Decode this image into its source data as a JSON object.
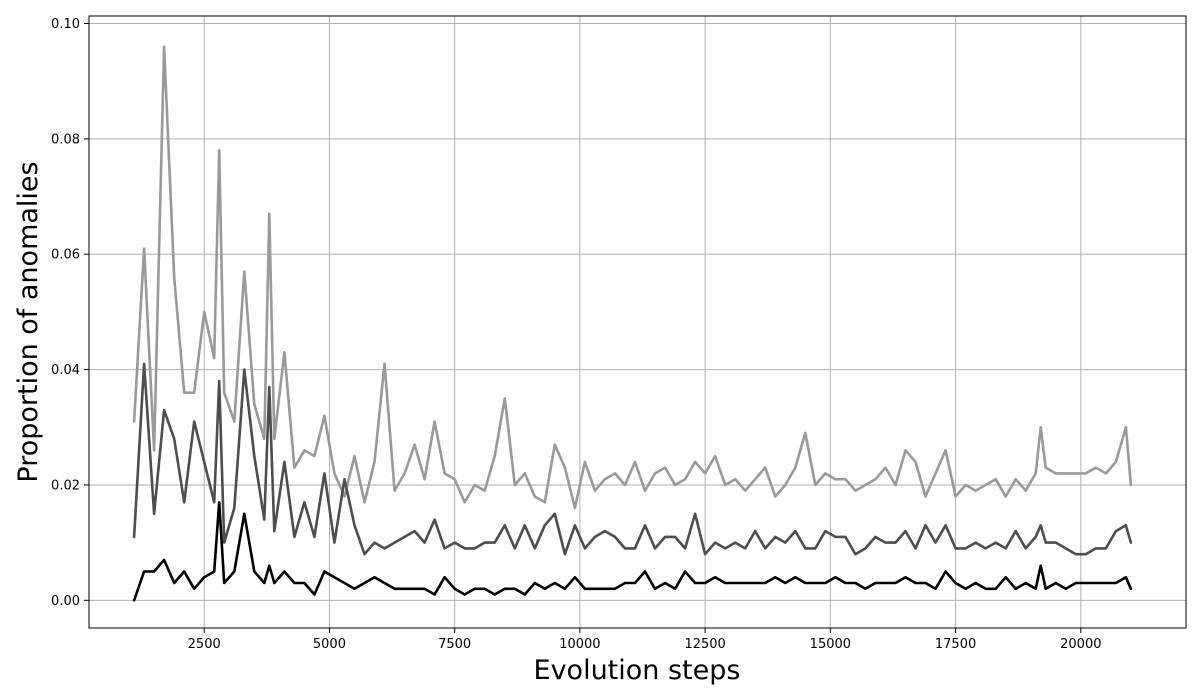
{
  "chart_data": {
    "type": "line",
    "title": "",
    "xlabel": "Evolution steps",
    "ylabel": "Proportion of anomalies",
    "xlim": [
      200,
      22100
    ],
    "ylim": [
      -0.0048,
      0.1013
    ],
    "x_ticks": [
      2500,
      5000,
      7500,
      10000,
      12500,
      15000,
      17500,
      20000
    ],
    "x_tick_labels": [
      "2500",
      "5000",
      "7500",
      "10000",
      "12500",
      "15000",
      "17500",
      "20000"
    ],
    "y_ticks": [
      0.0,
      0.02,
      0.04,
      0.06,
      0.08,
      0.1
    ],
    "y_tick_labels": [
      "0.00",
      "0.02",
      "0.04",
      "0.06",
      "0.08",
      "0.10"
    ],
    "grid": true,
    "legend": "none",
    "x": [
      1100,
      1300,
      1500,
      1700,
      1900,
      2100,
      2300,
      2500,
      2700,
      2800,
      2900,
      3100,
      3300,
      3500,
      3700,
      3800,
      3900,
      4100,
      4300,
      4500,
      4700,
      4900,
      5100,
      5300,
      5500,
      5700,
      5900,
      6100,
      6300,
      6500,
      6700,
      6900,
      7100,
      7300,
      7500,
      7700,
      7900,
      8100,
      8300,
      8500,
      8700,
      8900,
      9100,
      9300,
      9500,
      9700,
      9900,
      10100,
      10300,
      10500,
      10700,
      10900,
      11100,
      11300,
      11500,
      11700,
      11900,
      12100,
      12300,
      12500,
      12700,
      12900,
      13100,
      13300,
      13500,
      13700,
      13900,
      14100,
      14300,
      14500,
      14700,
      14900,
      15100,
      15300,
      15500,
      15700,
      15900,
      16100,
      16300,
      16500,
      16700,
      16900,
      17100,
      17300,
      17500,
      17700,
      17900,
      18100,
      18300,
      18500,
      18700,
      18900,
      19100,
      19200,
      19300,
      19500,
      19700,
      19900,
      20100,
      20300,
      20500,
      20700,
      20900,
      21000
    ],
    "series": [
      {
        "color": "#999999",
        "values": [
          0.031,
          0.061,
          0.026,
          0.096,
          0.056,
          0.036,
          0.036,
          0.05,
          0.042,
          0.078,
          0.036,
          0.031,
          0.057,
          0.034,
          0.028,
          0.067,
          0.028,
          0.043,
          0.023,
          0.026,
          0.025,
          0.032,
          0.022,
          0.018,
          0.025,
          0.017,
          0.024,
          0.041,
          0.019,
          0.022,
          0.027,
          0.021,
          0.031,
          0.022,
          0.021,
          0.017,
          0.02,
          0.019,
          0.025,
          0.035,
          0.02,
          0.022,
          0.018,
          0.017,
          0.027,
          0.023,
          0.016,
          0.024,
          0.019,
          0.021,
          0.022,
          0.02,
          0.024,
          0.019,
          0.022,
          0.023,
          0.02,
          0.021,
          0.024,
          0.022,
          0.025,
          0.02,
          0.021,
          0.019,
          0.021,
          0.023,
          0.018,
          0.02,
          0.023,
          0.029,
          0.02,
          0.022,
          0.021,
          0.021,
          0.019,
          0.02,
          0.021,
          0.023,
          0.02,
          0.026,
          0.024,
          0.018,
          0.022,
          0.026,
          0.018,
          0.02,
          0.019,
          0.02,
          0.021,
          0.018,
          0.021,
          0.019,
          0.022,
          0.03,
          0.023,
          0.022,
          0.022,
          0.022,
          0.022,
          0.023,
          0.022,
          0.024,
          0.03,
          0.02
        ]
      },
      {
        "color": "#4d4d4d",
        "values": [
          0.011,
          0.041,
          0.015,
          0.033,
          0.028,
          0.017,
          0.031,
          0.024,
          0.017,
          0.038,
          0.01,
          0.016,
          0.04,
          0.025,
          0.014,
          0.037,
          0.012,
          0.024,
          0.011,
          0.017,
          0.011,
          0.022,
          0.01,
          0.021,
          0.013,
          0.008,
          0.01,
          0.009,
          0.01,
          0.011,
          0.012,
          0.01,
          0.014,
          0.009,
          0.01,
          0.009,
          0.009,
          0.01,
          0.01,
          0.013,
          0.009,
          0.013,
          0.009,
          0.013,
          0.015,
          0.008,
          0.013,
          0.009,
          0.011,
          0.012,
          0.011,
          0.009,
          0.009,
          0.013,
          0.009,
          0.011,
          0.011,
          0.009,
          0.015,
          0.008,
          0.01,
          0.009,
          0.01,
          0.009,
          0.012,
          0.009,
          0.011,
          0.01,
          0.012,
          0.009,
          0.009,
          0.012,
          0.011,
          0.011,
          0.008,
          0.009,
          0.011,
          0.01,
          0.01,
          0.012,
          0.009,
          0.013,
          0.01,
          0.013,
          0.009,
          0.009,
          0.01,
          0.009,
          0.01,
          0.009,
          0.012,
          0.009,
          0.011,
          0.013,
          0.01,
          0.01,
          0.009,
          0.008,
          0.008,
          0.009,
          0.009,
          0.012,
          0.013,
          0.01
        ]
      },
      {
        "color": "#000000",
        "values": [
          0.0,
          0.005,
          0.005,
          0.007,
          0.003,
          0.005,
          0.002,
          0.004,
          0.005,
          0.017,
          0.003,
          0.005,
          0.015,
          0.005,
          0.003,
          0.006,
          0.003,
          0.005,
          0.003,
          0.003,
          0.001,
          0.005,
          0.004,
          0.003,
          0.002,
          0.003,
          0.004,
          0.003,
          0.002,
          0.002,
          0.002,
          0.002,
          0.001,
          0.004,
          0.002,
          0.001,
          0.002,
          0.002,
          0.001,
          0.002,
          0.002,
          0.001,
          0.003,
          0.002,
          0.003,
          0.002,
          0.004,
          0.002,
          0.002,
          0.002,
          0.002,
          0.003,
          0.003,
          0.005,
          0.002,
          0.003,
          0.002,
          0.005,
          0.003,
          0.003,
          0.004,
          0.003,
          0.003,
          0.003,
          0.003,
          0.003,
          0.004,
          0.003,
          0.004,
          0.003,
          0.003,
          0.003,
          0.004,
          0.003,
          0.003,
          0.002,
          0.003,
          0.003,
          0.003,
          0.004,
          0.003,
          0.003,
          0.002,
          0.005,
          0.003,
          0.002,
          0.003,
          0.002,
          0.002,
          0.004,
          0.002,
          0.003,
          0.002,
          0.006,
          0.002,
          0.003,
          0.002,
          0.003,
          0.003,
          0.003,
          0.003,
          0.003,
          0.004,
          0.002
        ]
      }
    ]
  }
}
